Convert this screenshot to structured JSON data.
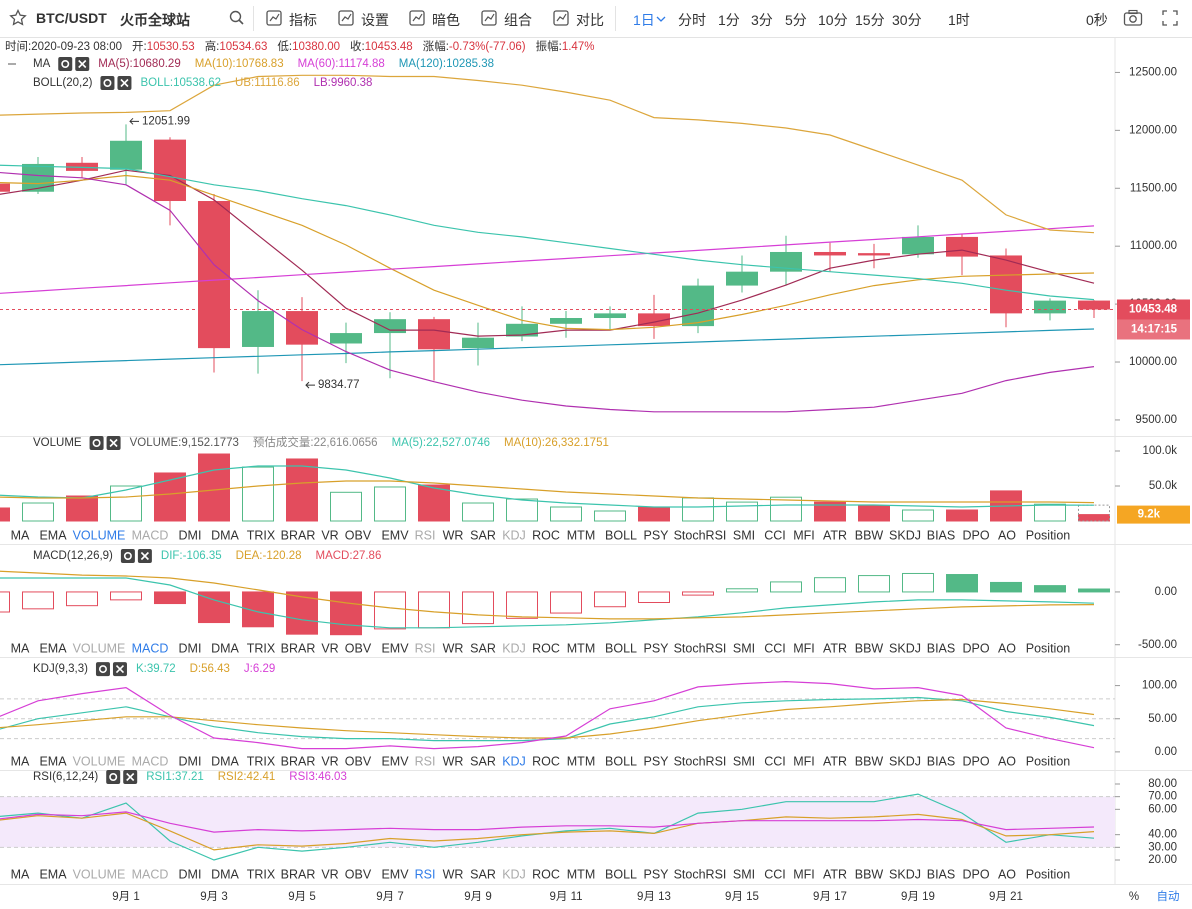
{
  "toolbar": {
    "symbol": "BTC/USDT",
    "exchange": "火币全球站",
    "buttons": [
      "指标",
      "设置",
      "暗色",
      "组合",
      "对比"
    ],
    "intervals": [
      "1日",
      "分时",
      "1分",
      "3分",
      "5分",
      "10分",
      "15分",
      "30分",
      "1时"
    ],
    "countdown": "0秒"
  },
  "info": [
    {
      "label": "时间:",
      "value": "2020-09-23 08:00"
    },
    {
      "label": "开:",
      "value": "10530.53"
    },
    {
      "label": "高:",
      "value": "10534.63"
    },
    {
      "label": "低:",
      "value": "10380.00"
    },
    {
      "label": "收:",
      "value": "10453.48"
    },
    {
      "label": "涨幅:",
      "value": "-0.73%(-77.06)"
    },
    {
      "label": "振幅:",
      "value": "1.47%"
    }
  ],
  "tabs": [
    "MA",
    "EMA",
    "VOLUME",
    "MACD",
    "DMI",
    "DMA",
    "TRIX",
    "BRAR",
    "VR",
    "OBV",
    "EMV",
    "RSI",
    "WR",
    "SAR",
    "KDJ",
    "ROC",
    "MTM",
    "BOLL",
    "PSY",
    "StochRSI",
    "SMI",
    "CCI",
    "MFI",
    "ATR",
    "BBW",
    "SKDJ",
    "BIAS",
    "DPO",
    "AO",
    "Position"
  ],
  "footer": {
    "percent": "%",
    "auto": "自动"
  },
  "chart_data": [
    {
      "type": "candlestick",
      "title": "MA",
      "up_color": "#53b987",
      "down_color": "#e34c5d",
      "open": [
        11540,
        11470,
        11720,
        11660,
        11920,
        11390,
        10130,
        10440,
        10160,
        10250,
        10370,
        10120,
        10220,
        10330,
        10380,
        10420,
        10310,
        10660,
        10780,
        10950,
        10940,
        10930,
        11080,
        10920,
        10420,
        10530.53
      ],
      "high": [
        11560,
        11770,
        11770,
        12051.99,
        11940,
        11450,
        10620,
        10560,
        10340,
        10430,
        10390,
        10340,
        10480,
        10440,
        10480,
        10580,
        10720,
        10920,
        11090,
        11030,
        11020,
        11180,
        11110,
        10980,
        10550,
        10534.63
      ],
      "low": [
        11460,
        11450,
        11590,
        11530,
        11180,
        9910,
        9900,
        9834.77,
        9990,
        9860,
        9840,
        9970,
        10180,
        10210,
        10280,
        10200,
        10250,
        10600,
        10660,
        10780,
        10810,
        10900,
        10750,
        10300,
        10360,
        10380
      ],
      "close": [
        11470,
        11710,
        11650,
        11910,
        11390,
        10120,
        10440,
        10150,
        10250,
        10370,
        10110,
        10210,
        10330,
        10380,
        10420,
        10310,
        10660,
        10780,
        10950,
        10920,
        10920,
        11080,
        10910,
        10420,
        10530,
        10453.48
      ],
      "countdown": "14:17:15",
      "ylim": [
        9370,
        12780
      ],
      "yticks": [
        {
          "value": 9500,
          "label": "9500.00"
        },
        {
          "value": 10000,
          "label": "10000.00"
        },
        {
          "value": 10500,
          "label": "10500.00"
        },
        {
          "value": 11000,
          "label": "11000.00"
        },
        {
          "value": 11500,
          "label": "11500.00"
        },
        {
          "value": 12000,
          "label": "12000.00"
        },
        {
          "value": 12500,
          "label": "12500.00"
        }
      ],
      "series": [
        {
          "name": "MA(5):",
          "color": "#a12b55",
          "values": [
            11440,
            11500,
            11570,
            11655,
            11610,
            11400,
            11095,
            10793,
            10465,
            10276,
            10276,
            10224,
            10233,
            10276,
            10276,
            10345,
            10422,
            10535,
            10664,
            10810,
            10880,
            10931,
            10966,
            10880,
            10776,
            10680.29
          ]
        },
        {
          "name": "MA(10):",
          "color": "#d8a02a",
          "values": [
            11550,
            11540,
            11570,
            11610,
            11570,
            11440,
            11310,
            11180,
            11010,
            10810,
            10620,
            10490,
            10360,
            10290,
            10280,
            10300,
            10340,
            10410,
            10490,
            10580,
            10660,
            10710,
            10740,
            10750,
            10760,
            10768.83
          ]
        },
        {
          "name": "MA(60):",
          "color": "#d63fd6",
          "values": [
            10590,
            10613,
            10637,
            10660,
            10684,
            10707,
            10730,
            10754,
            10777,
            10801,
            10824,
            10847,
            10871,
            10894,
            10918,
            10941,
            10964,
            10988,
            11011,
            11035,
            11058,
            11081,
            11105,
            11128,
            11151,
            11174.88
          ]
        },
        {
          "name": "MA(120):",
          "color": "#1f97b5",
          "values": [
            9975,
            9987,
            10000,
            10012,
            10025,
            10037,
            10049,
            10062,
            10074,
            10087,
            10099,
            10111,
            10124,
            10136,
            10149,
            10161,
            10173,
            10186,
            10198,
            10211,
            10223,
            10235,
            10248,
            10260,
            10273,
            10285.38
          ]
        }
      ],
      "boll": {
        "title": "BOLL(20,2)",
        "series": [
          {
            "name": "BOLL:",
            "color": "#3cc4ad",
            "values": [
              11700,
              11690,
              11680,
              11670,
              11600,
              11530,
              11480,
              11410,
              11350,
              11270,
              11180,
              11120,
              11080,
              11030,
              10980,
              10930,
              10880,
              10840,
              10810,
              10780,
              10750,
              10720,
              10680,
              10620,
              10570,
              10538.62
            ]
          },
          {
            "name": "UB:",
            "color": "#dca63c",
            "values": [
              12130,
              12140,
              12150,
              12155,
              12170,
              12390,
              12465,
              12475,
              12475,
              12465,
              12465,
              12430,
              12390,
              12330,
              12260,
              12110,
              12090,
              12060,
              12020,
              11960,
              11830,
              11700,
              11570,
              11270,
              11140,
              11116.86
            ]
          },
          {
            "name": "LB:",
            "color": "#b030b0",
            "values": [
              11640,
              11610,
              11590,
              11530,
              11310,
              10840,
              10530,
              10280,
              10090,
              9930,
              9830,
              9740,
              9670,
              9620,
              9590,
              9570,
              9570,
              9570,
              9570,
              9590,
              9610,
              9670,
              9730,
              9840,
              9910,
              9960.38
            ]
          }
        ]
      }
    },
    {
      "type": "bar",
      "title": "VOLUME",
      "name": "VOLUME:",
      "values": [
        18600,
        25700,
        35700,
        50000,
        68600,
        95700,
        77000,
        88600,
        41000,
        48600,
        51400,
        25700,
        31400,
        20000,
        14300,
        20000,
        33000,
        27000,
        34000,
        27000,
        21400,
        15700,
        15700,
        43000,
        24000,
        9152.1773
      ],
      "last_label": "9,152.1773",
      "last_axis_label": "9.2k",
      "estimate": {
        "name": "预估成交量:",
        "value": 22616.0656,
        "label": "22,616.0656"
      },
      "ylim": [
        0,
        110000
      ],
      "yticks": [
        {
          "value": 50000,
          "label": "50.0k"
        },
        {
          "value": 100000,
          "label": "100.0k"
        }
      ],
      "series": [
        {
          "name": "MA(5):",
          "color": "#3cc4ad",
          "last_label": "22,527.0746",
          "values": [
            37100,
            34300,
            32900,
            44300,
            58600,
            72900,
            78600,
            78600,
            72900,
            61400,
            47100,
            37100,
            30000,
            25700,
            22900,
            20000,
            20000,
            21400,
            22900,
            22900,
            22900,
            21400,
            20000,
            21400,
            22900,
            22527.0746
          ]
        },
        {
          "name": "MA(10):",
          "color": "#d8a02a",
          "last_label": "26,332.1751",
          "values": [
            34300,
            32900,
            32900,
            34300,
            38600,
            44300,
            50000,
            54300,
            57100,
            57100,
            54300,
            50000,
            45700,
            41400,
            38600,
            35700,
            32900,
            31400,
            30000,
            28600,
            27100,
            27100,
            27100,
            27100,
            27100,
            26332.1751
          ]
        }
      ]
    },
    {
      "type": "macd",
      "title": "MACD(12,26,9)",
      "name": "MACD:",
      "color": "#e34c5d",
      "up_color": "#53b987",
      "down_color": "#e34c5d",
      "values": [
        -190,
        -160,
        -130,
        -75,
        -110,
        -290,
        -330,
        -400,
        -405,
        -350,
        -340,
        -300,
        -250,
        -200,
        -140,
        -100,
        -30,
        30,
        95,
        135,
        155,
        175,
        165,
        90,
        60,
        27.86
      ],
      "ylim": [
        -550,
        350
      ],
      "yticks": [
        {
          "value": -500,
          "label": "-500.00"
        },
        {
          "value": 0,
          "label": "0.00"
        }
      ],
      "series": [
        {
          "name": "DIF:",
          "color": "#3cc4ad",
          "values": [
            132,
            132,
            132,
            132,
            66,
            -75,
            -189,
            -264,
            -311,
            -340,
            -340,
            -330,
            -321,
            -311,
            -292,
            -264,
            -236,
            -198,
            -151,
            -123,
            -94,
            -75,
            -75,
            -85,
            -94,
            -106.35
          ]
        },
        {
          "name": "DEA:",
          "color": "#d8a02a",
          "values": [
            198,
            179,
            160,
            151,
            132,
            85,
            19,
            -47,
            -104,
            -151,
            -189,
            -217,
            -236,
            -245,
            -255,
            -255,
            -245,
            -236,
            -217,
            -198,
            -179,
            -160,
            -142,
            -132,
            -123,
            -120.28
          ]
        }
      ]
    },
    {
      "type": "line",
      "title": "KDJ(9,3,3)",
      "ylim": [
        -13.6,
        125.8
      ],
      "yticks": [
        {
          "value": 0,
          "label": "0.00"
        },
        {
          "value": 50,
          "label": "50.00"
        },
        {
          "value": 100,
          "label": "100.00"
        }
      ],
      "ref_lines": [
        20,
        50,
        80
      ],
      "series": [
        {
          "name": "K:",
          "color": "#3cc4ad",
          "values": [
            32,
            50,
            59,
            68,
            53,
            38,
            29,
            23,
            20,
            20,
            17,
            17,
            17,
            20,
            42,
            53,
            68,
            74,
            77,
            79,
            80,
            82,
            77,
            61,
            52,
            39.72
          ]
        },
        {
          "name": "D:",
          "color": "#d8a02a",
          "values": [
            36,
            41,
            47,
            53,
            53,
            47,
            41,
            36,
            32,
            29,
            26,
            23,
            21,
            21,
            27,
            36,
            47,
            56,
            64,
            68,
            73,
            77,
            79,
            73,
            65,
            56.43
          ]
        },
        {
          "name": "J:",
          "color": "#d63fd6",
          "values": [
            50,
            77,
            88,
            97,
            55,
            21,
            14,
            5,
            5,
            9,
            5,
            8,
            14,
            24,
            65,
            77,
            98,
            103,
            106,
            103,
            95,
            97,
            85,
            36,
            20,
            6.29
          ]
        }
      ]
    },
    {
      "type": "line",
      "title": "RSI(6,12,24)",
      "categories": [
        null,
        null,
        null,
        "9月 1",
        null,
        "9月 3",
        null,
        "9月 5",
        null,
        "9月 7",
        null,
        "9月 9",
        null,
        "9月 11",
        null,
        "9月 13",
        null,
        "9月 15",
        null,
        "9月 17",
        null,
        "9月 19",
        null,
        "9月 21",
        null,
        null
      ],
      "ylim": [
        2,
        86
      ],
      "yticks": [
        {
          "value": 20,
          "label": "20.00"
        },
        {
          "value": 30,
          "label": "30.00"
        },
        {
          "value": 40,
          "label": "40.00"
        },
        {
          "value": 60,
          "label": "60.00"
        },
        {
          "value": 70,
          "label": "70.00"
        },
        {
          "value": 80,
          "label": "80.00"
        }
      ],
      "band": [
        30,
        70
      ],
      "band_color": "#f4e9fb",
      "series": [
        {
          "name": "RSI1:",
          "color": "#3cc4ad",
          "values": [
            54,
            57,
            53,
            65,
            35,
            20,
            30,
            27,
            30,
            34,
            30,
            34,
            39,
            43,
            45,
            41,
            57,
            60,
            66,
            66,
            66,
            72,
            57,
            34,
            40,
            37.21
          ]
        },
        {
          "name": "RSI2:",
          "color": "#d8a02a",
          "values": [
            51,
            55,
            53,
            57,
            43,
            28,
            32,
            31,
            33,
            37,
            35,
            37,
            40,
            42,
            43,
            41,
            49,
            51,
            54,
            53,
            54,
            56,
            52,
            39,
            40,
            42.41
          ]
        },
        {
          "name": "RSI3:",
          "color": "#d63fd6",
          "values": [
            52,
            56,
            55,
            58,
            49,
            42,
            44,
            43,
            44,
            45,
            44,
            44,
            46,
            47,
            47,
            46,
            49,
            51,
            51,
            51,
            51,
            52,
            51,
            44,
            45,
            46.03
          ]
        }
      ]
    }
  ]
}
